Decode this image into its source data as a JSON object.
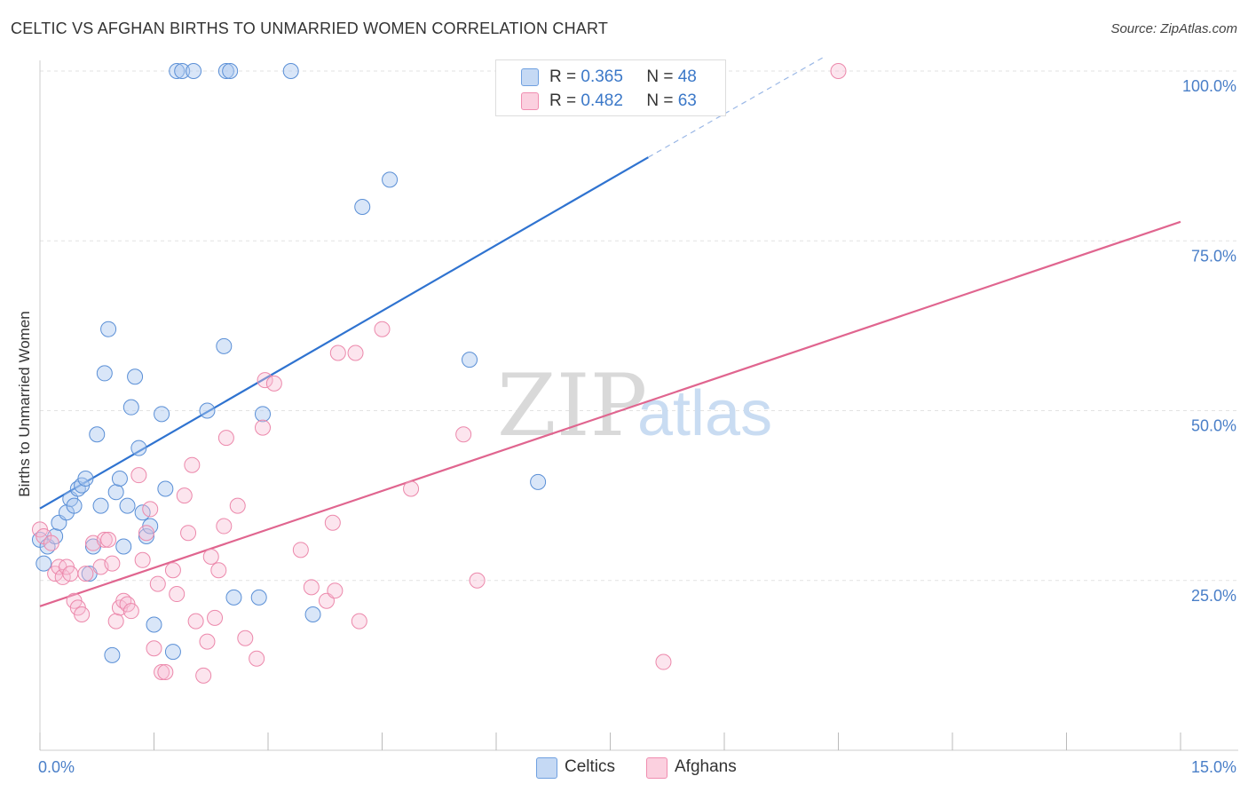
{
  "header": {
    "title": "CELTIC VS AFGHAN BIRTHS TO UNMARRIED WOMEN CORRELATION CHART",
    "source": "Source: ZipAtlas.com"
  },
  "watermark": {
    "zip": "ZIP",
    "atlas": "atlas"
  },
  "legend": {
    "celtics": {
      "r_label": "R = ",
      "r_value": "0.365",
      "n_label": "N = ",
      "n_value": "48",
      "color": "#6fa0e0"
    },
    "afghans": {
      "r_label": "R = ",
      "r_value": "0.482",
      "n_label": "N = ",
      "n_value": "63",
      "color": "#f08db0"
    }
  },
  "bottom_legend": {
    "celtics": "Celtics",
    "afghans": "Afghans"
  },
  "chart_data": {
    "type": "scatter",
    "title": "CELTIC VS AFGHAN BIRTHS TO UNMARRIED WOMEN CORRELATION CHART",
    "xlabel": "",
    "ylabel": "Births to Unmarried Women",
    "xlim": [
      0,
      15
    ],
    "ylim": [
      0,
      100
    ],
    "x_tick_labels": [
      "0.0%",
      "15.0%"
    ],
    "y_tick_values": [
      25,
      50,
      75,
      100
    ],
    "y_tick_labels": [
      "25.0%",
      "50.0%",
      "75.0%",
      "100.0%"
    ],
    "grid": true,
    "legend_position": "top-center",
    "series": [
      {
        "name": "Celtics",
        "color": "#6fa0e0",
        "trend": {
          "x0": 0,
          "y0": 35.6,
          "x1": 8.0,
          "y1": 87.3,
          "dashed_to_x": 10.3,
          "dashed_to_y": 102.0
        },
        "points": [
          [
            0.0,
            31.0
          ],
          [
            0.1,
            30.0
          ],
          [
            0.05,
            27.5
          ],
          [
            0.2,
            31.5
          ],
          [
            0.25,
            33.5
          ],
          [
            0.35,
            35.0
          ],
          [
            0.4,
            37.0
          ],
          [
            0.45,
            36.0
          ],
          [
            0.5,
            38.5
          ],
          [
            0.55,
            39.0
          ],
          [
            0.6,
            40.0
          ],
          [
            0.65,
            26.0
          ],
          [
            0.7,
            30.0
          ],
          [
            0.75,
            46.5
          ],
          [
            0.8,
            36.0
          ],
          [
            0.85,
            55.5
          ],
          [
            0.9,
            62.0
          ],
          [
            0.95,
            14.0
          ],
          [
            1.0,
            38.0
          ],
          [
            1.05,
            40.0
          ],
          [
            1.1,
            30.0
          ],
          [
            1.15,
            36.0
          ],
          [
            1.2,
            50.5
          ],
          [
            1.25,
            55.0
          ],
          [
            1.3,
            44.5
          ],
          [
            1.35,
            35.0
          ],
          [
            1.4,
            31.5
          ],
          [
            1.45,
            33.0
          ],
          [
            1.5,
            18.5
          ],
          [
            1.6,
            49.5
          ],
          [
            1.65,
            38.5
          ],
          [
            1.75,
            14.5
          ],
          [
            1.8,
            100.0
          ],
          [
            1.87,
            100.0
          ],
          [
            2.02,
            100.0
          ],
          [
            2.2,
            50.0
          ],
          [
            2.45,
            100.0
          ],
          [
            2.5,
            100.0
          ],
          [
            2.42,
            59.5
          ],
          [
            2.55,
            22.5
          ],
          [
            2.88,
            22.5
          ],
          [
            2.93,
            49.5
          ],
          [
            3.3,
            100.0
          ],
          [
            3.59,
            20.0
          ],
          [
            4.24,
            80.0
          ],
          [
            4.6,
            84.0
          ],
          [
            5.65,
            57.5
          ],
          [
            6.55,
            39.5
          ]
        ]
      },
      {
        "name": "Afghans",
        "color": "#f08db0",
        "trend": {
          "x0": 0,
          "y0": 21.2,
          "x1": 15.0,
          "y1": 77.8
        },
        "points": [
          [
            0.0,
            32.5
          ],
          [
            0.05,
            31.5
          ],
          [
            0.15,
            30.5
          ],
          [
            0.2,
            26.0
          ],
          [
            0.25,
            27.0
          ],
          [
            0.3,
            25.5
          ],
          [
            0.35,
            27.0
          ],
          [
            0.4,
            26.0
          ],
          [
            0.45,
            22.0
          ],
          [
            0.5,
            21.0
          ],
          [
            0.55,
            20.0
          ],
          [
            0.6,
            26.0
          ],
          [
            0.7,
            30.5
          ],
          [
            0.8,
            27.0
          ],
          [
            0.85,
            31.0
          ],
          [
            0.9,
            31.0
          ],
          [
            0.95,
            27.5
          ],
          [
            1.0,
            19.0
          ],
          [
            1.05,
            21.0
          ],
          [
            1.1,
            22.0
          ],
          [
            1.15,
            21.5
          ],
          [
            1.2,
            20.5
          ],
          [
            1.3,
            40.5
          ],
          [
            1.35,
            28.0
          ],
          [
            1.4,
            32.0
          ],
          [
            1.45,
            35.5
          ],
          [
            1.5,
            15.0
          ],
          [
            1.55,
            24.5
          ],
          [
            1.6,
            11.5
          ],
          [
            1.65,
            11.5
          ],
          [
            1.75,
            26.5
          ],
          [
            1.8,
            23.0
          ],
          [
            1.9,
            37.5
          ],
          [
            1.95,
            32.0
          ],
          [
            2.0,
            42.0
          ],
          [
            2.05,
            19.0
          ],
          [
            2.15,
            11.0
          ],
          [
            2.2,
            16.0
          ],
          [
            2.25,
            28.5
          ],
          [
            2.3,
            19.5
          ],
          [
            2.35,
            26.5
          ],
          [
            2.42,
            33.0
          ],
          [
            2.45,
            46.0
          ],
          [
            2.6,
            36.0
          ],
          [
            2.7,
            16.5
          ],
          [
            2.85,
            13.5
          ],
          [
            2.93,
            47.5
          ],
          [
            2.96,
            54.5
          ],
          [
            3.08,
            54.0
          ],
          [
            3.43,
            29.5
          ],
          [
            3.57,
            24.0
          ],
          [
            3.77,
            22.0
          ],
          [
            3.85,
            33.5
          ],
          [
            3.88,
            23.5
          ],
          [
            3.92,
            58.5
          ],
          [
            4.15,
            58.5
          ],
          [
            4.2,
            19.0
          ],
          [
            4.5,
            62.0
          ],
          [
            4.88,
            38.5
          ],
          [
            5.57,
            46.5
          ],
          [
            5.75,
            25.0
          ],
          [
            8.2,
            13.0
          ],
          [
            10.5,
            100.0
          ]
        ]
      }
    ]
  }
}
